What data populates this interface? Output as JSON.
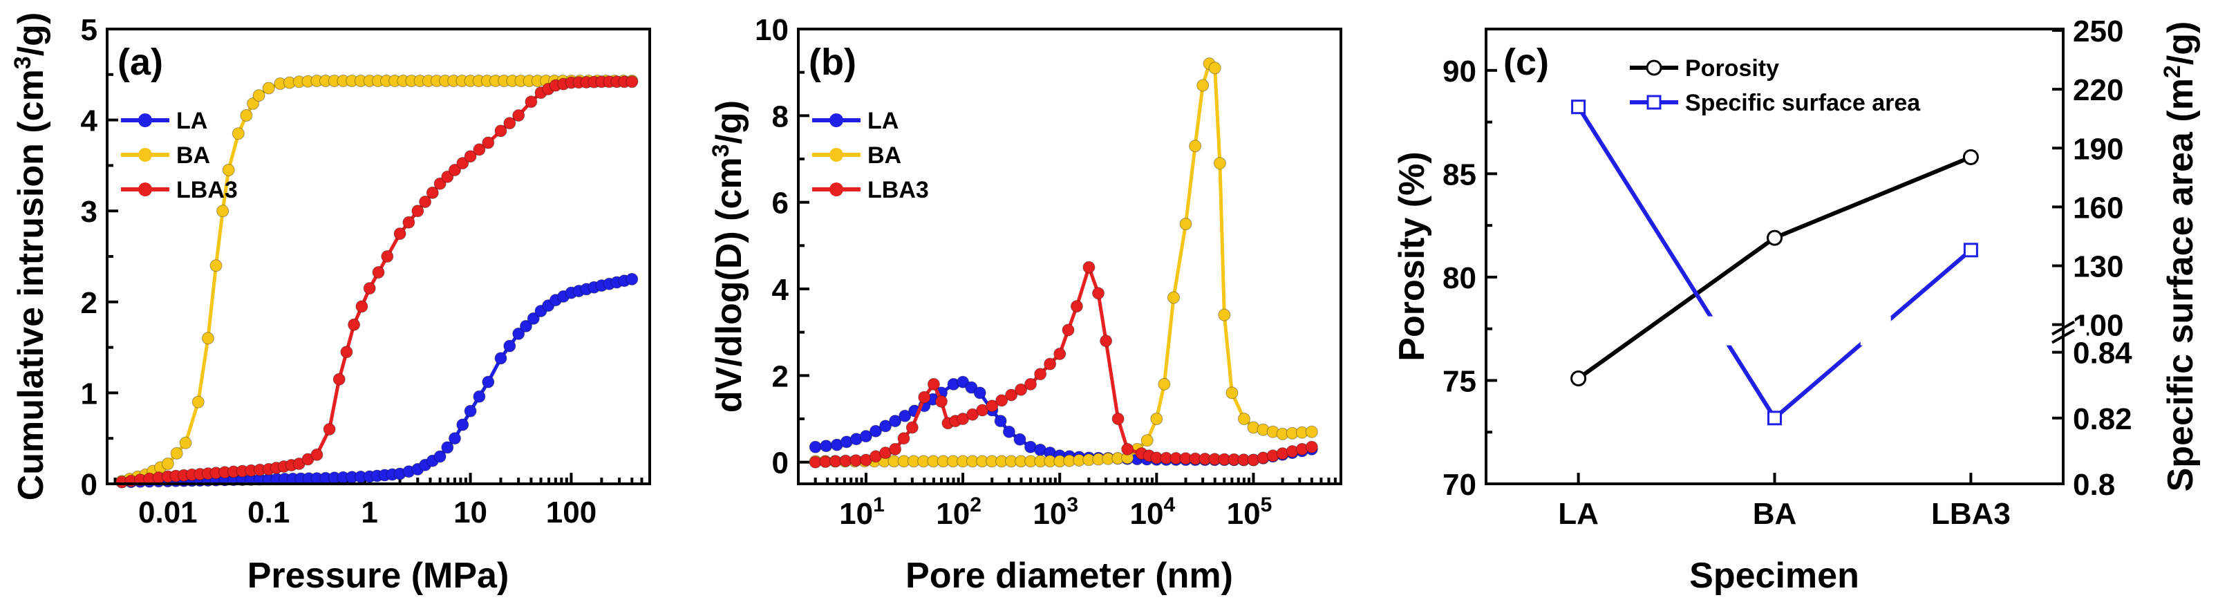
{
  "chart_data": [
    {
      "type": "line",
      "panel": "(a)",
      "xlabel": "Pressure (MPa)",
      "ylabel": "Cumulative intrusion (cm3/g)",
      "ylabel_main": "Cumulative intrusion (cm",
      "ylabel_sup": "3",
      "ylabel_end": "/g)",
      "x_scale": "log",
      "xlim": [
        0.0025,
        600
      ],
      "ylim": [
        0,
        5
      ],
      "x_ticks": [
        0.01,
        0.1,
        1,
        10,
        100
      ],
      "x_tick_labels": [
        "0.01",
        "0.1",
        "1",
        "10",
        "100"
      ],
      "y_ticks": [
        0,
        1,
        2,
        3,
        4,
        5
      ],
      "y_tick_labels": [
        "0",
        "1",
        "2",
        "3",
        "4",
        "5"
      ],
      "legend_position": "upper-left",
      "series": [
        {
          "name": "LA",
          "color": "#1f1fe6",
          "x": [
            0.0035,
            0.01,
            0.03,
            0.1,
            0.3,
            1,
            2,
            3,
            5,
            7,
            10,
            15,
            20,
            30,
            50,
            70,
            100,
            200,
            400
          ],
          "y": [
            0.02,
            0.03,
            0.04,
            0.05,
            0.06,
            0.08,
            0.11,
            0.16,
            0.3,
            0.5,
            0.8,
            1.12,
            1.38,
            1.65,
            1.9,
            2.02,
            2.1,
            2.18,
            2.25
          ]
        },
        {
          "name": "BA",
          "color": "#f5c518",
          "x": [
            0.0035,
            0.006,
            0.01,
            0.015,
            0.02,
            0.025,
            0.03,
            0.035,
            0.04,
            0.05,
            0.06,
            0.07,
            0.08,
            0.1,
            0.13,
            0.2,
            0.3,
            1,
            10,
            100,
            400
          ],
          "y": [
            0.03,
            0.1,
            0.22,
            0.45,
            0.9,
            1.6,
            2.4,
            3.0,
            3.45,
            3.85,
            4.05,
            4.18,
            4.27,
            4.35,
            4.4,
            4.42,
            4.43,
            4.43,
            4.43,
            4.43,
            4.43
          ]
        },
        {
          "name": "LBA3",
          "color": "#e62020",
          "x": [
            0.0035,
            0.01,
            0.03,
            0.1,
            0.2,
            0.3,
            0.4,
            0.5,
            0.7,
            1,
            1.5,
            2,
            3,
            5,
            7,
            10,
            15,
            20,
            30,
            40,
            50,
            70,
            100,
            200,
            400
          ],
          "y": [
            0.02,
            0.08,
            0.12,
            0.16,
            0.22,
            0.32,
            0.6,
            1.15,
            1.75,
            2.15,
            2.5,
            2.75,
            3.0,
            3.3,
            3.45,
            3.6,
            3.75,
            3.88,
            4.05,
            4.2,
            4.3,
            4.38,
            4.41,
            4.42,
            4.42
          ]
        }
      ]
    },
    {
      "type": "line",
      "panel": "(b)",
      "xlabel": "Pore diameter (nm)",
      "ylabel": "dV/dlog(D) (cm3/g)",
      "ylabel_main": "dV/dlog(D) (cm",
      "ylabel_sup": "3",
      "ylabel_end": "/g)",
      "x_scale": "log",
      "xlim": [
        2,
        800000
      ],
      "ylim": [
        -0.5,
        10
      ],
      "x_ticks": [
        10,
        100,
        1000,
        10000,
        100000
      ],
      "x_tick_labels": [
        {
          "base": "10",
          "exp": "1"
        },
        {
          "base": "10",
          "exp": "2"
        },
        {
          "base": "10",
          "exp": "3"
        },
        {
          "base": "10",
          "exp": "4"
        },
        {
          "base": "10",
          "exp": "5"
        }
      ],
      "y_ticks": [
        0,
        2,
        4,
        6,
        8,
        10
      ],
      "y_tick_labels": [
        "0",
        "2",
        "4",
        "6",
        "8",
        "10"
      ],
      "legend_position": "upper-left",
      "series": [
        {
          "name": "LA",
          "color": "#1f1fe6",
          "x": [
            3,
            5,
            10,
            20,
            40,
            60,
            80,
            100,
            150,
            200,
            300,
            500,
            1000,
            2000,
            5000,
            10000,
            100000,
            400000
          ],
          "y": [
            0.35,
            0.4,
            0.6,
            0.95,
            1.3,
            1.6,
            1.8,
            1.85,
            1.6,
            1.2,
            0.7,
            0.35,
            0.15,
            0.1,
            0.08,
            0.06,
            0.05,
            0.3
          ]
        },
        {
          "name": "BA",
          "color": "#f5c518",
          "x": [
            3,
            100,
            1000,
            5000,
            8000,
            10000,
            12000,
            15000,
            20000,
            25000,
            30000,
            35000,
            40000,
            45000,
            50000,
            60000,
            80000,
            100000,
            200000,
            400000
          ],
          "y": [
            0.02,
            0.02,
            0.02,
            0.1,
            0.5,
            1.0,
            1.8,
            3.8,
            5.5,
            7.3,
            8.7,
            9.2,
            9.1,
            6.9,
            3.4,
            1.6,
            1.0,
            0.8,
            0.65,
            0.7
          ]
        },
        {
          "name": "LBA3",
          "color": "#e62020",
          "x": [
            3,
            10,
            20,
            30,
            40,
            50,
            60,
            70,
            100,
            200,
            500,
            1000,
            1500,
            2000,
            2500,
            3000,
            4000,
            5000,
            7000,
            10000,
            100000,
            400000
          ],
          "y": [
            0.0,
            0.05,
            0.3,
            0.8,
            1.5,
            1.8,
            1.4,
            0.9,
            1.0,
            1.3,
            1.8,
            2.5,
            3.6,
            4.5,
            3.9,
            2.8,
            1.0,
            0.3,
            0.2,
            0.1,
            0.05,
            0.35
          ]
        }
      ]
    },
    {
      "type": "line",
      "panel": "(c)",
      "xlabel": "Specimen",
      "ylabel": "Porosity (%)",
      "ylabel_right": "Specific surface area (m2/g)",
      "ylabel_right_main": "Specific surface area (m",
      "ylabel_right_sup": "2",
      "ylabel_right_end": "/g)",
      "categories": [
        "LA",
        "BA",
        "LBA3"
      ],
      "ylim": [
        70,
        92
      ],
      "y_ticks": [
        70,
        75,
        80,
        85,
        90
      ],
      "y_tick_labels": [
        "70",
        "75",
        "80",
        "85",
        "90"
      ],
      "right_axis": {
        "broken": true,
        "lower_range": [
          0.8,
          0.84
        ],
        "upper_range": [
          100,
          250
        ],
        "ticks_lower": [
          0.8,
          0.82,
          0.84
        ],
        "ticks_lower_labels": [
          "0.8",
          "0.82",
          "0.84"
        ],
        "ticks_upper": [
          100,
          130,
          160,
          190,
          220,
          250
        ],
        "ticks_upper_labels": [
          "100",
          "130",
          "160",
          "190",
          "220",
          "250"
        ]
      },
      "legend_position": "top-center",
      "series": [
        {
          "name": "Porosity",
          "color": "#000000",
          "marker": "circle",
          "axis": "left",
          "values": [
            75.1,
            81.9,
            85.8
          ]
        },
        {
          "name": "Specific surface area",
          "color": "#1f1fe6",
          "marker": "square",
          "axis": "right",
          "values": [
            211,
            0.82,
            138
          ]
        }
      ]
    }
  ]
}
